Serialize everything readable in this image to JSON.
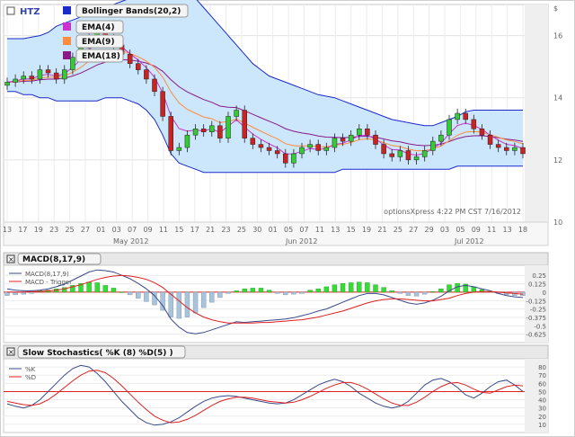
{
  "price_chart": {
    "symbol": "HTZ",
    "axis_unit": "$",
    "indicators": [
      "Bollinger Bands(20,2)",
      "EMA(4)",
      "EMA(9)",
      "EMA(18)"
    ],
    "indicator_colors": [
      "#1a2acc",
      "#cc33cc",
      "#ff8c3c",
      "#8a1a8a"
    ],
    "watermark": "optionsXpress 4:22 PM CST 7/16/2012",
    "months": [
      "May 2012",
      "Jun 2012",
      "Jul 2012"
    ],
    "date_ticks": [
      "13",
      "17",
      "19",
      "23",
      "25",
      "27",
      "01",
      "03",
      "07",
      "09",
      "11",
      "15",
      "17",
      "21",
      "23",
      "25",
      "30",
      "01",
      "05",
      "07",
      "11",
      "13",
      "15",
      "19",
      "21",
      "25",
      "27",
      "29",
      "03",
      "05",
      "09",
      "11",
      "13",
      "18"
    ]
  },
  "macd_panel": {
    "title": "MACD(8,17,9)",
    "legend": [
      "MACD(8,17,9)",
      "MACD - Trigger"
    ],
    "colors": {
      "macd": "#3a4a8a",
      "trigger": "#e02020",
      "hist_pos": "#33dd33",
      "hist_neg": "#a8c4dc"
    }
  },
  "stoch_panel": {
    "title": "Slow Stochastics( %K (8) %D(5) )",
    "legend": [
      "%K",
      "%D"
    ],
    "colors": {
      "k": "#3a4a8a",
      "d": "#e02020"
    }
  },
  "chart_data": [
    {
      "type": "candlestick",
      "ylim": [
        10,
        17
      ],
      "yticks": [
        10,
        12,
        14,
        16
      ],
      "grid": true,
      "close": [
        14.5,
        14.6,
        14.7,
        14.6,
        14.9,
        14.8,
        14.6,
        14.9,
        15.3,
        15.6,
        16.0,
        16.2,
        15.9,
        15.7,
        15.4,
        15.1,
        14.9,
        14.6,
        14.2,
        13.4,
        12.3,
        12.4,
        12.8,
        13.0,
        12.9,
        13.1,
        12.7,
        13.4,
        13.6,
        12.7,
        12.5,
        12.4,
        12.3,
        12.2,
        11.9,
        12.2,
        12.4,
        12.5,
        12.3,
        12.4,
        12.7,
        12.6,
        12.8,
        13.0,
        12.8,
        12.5,
        12.2,
        12.1,
        12.3,
        12.0,
        12.1,
        12.3,
        12.6,
        12.8,
        13.3,
        13.5,
        13.3,
        13.0,
        12.8,
        12.5,
        12.4,
        12.3,
        12.4,
        12.2
      ],
      "bb_upper": [
        15.9,
        15.9,
        15.9,
        15.95,
        16.0,
        16.1,
        16.3,
        16.4,
        16.5,
        16.6,
        16.7,
        16.8,
        16.9,
        17.0,
        17.1,
        17.2,
        17.3,
        17.4,
        17.5,
        17.55,
        17.6,
        17.55,
        17.4,
        17.2,
        16.9,
        16.6,
        16.3,
        16.0,
        15.7,
        15.4,
        15.1,
        14.9,
        14.7,
        14.6,
        14.5,
        14.4,
        14.3,
        14.2,
        14.1,
        14.05,
        14.0,
        13.9,
        13.8,
        13.7,
        13.6,
        13.5,
        13.4,
        13.3,
        13.25,
        13.2,
        13.15,
        13.1,
        13.1,
        13.2,
        13.3,
        13.4,
        13.55,
        13.6,
        13.6,
        13.6,
        13.6,
        13.6,
        13.6,
        13.6
      ],
      "bb_lower": [
        14.2,
        14.2,
        14.1,
        14.1,
        14.0,
        14.0,
        13.9,
        13.9,
        13.9,
        13.9,
        13.9,
        13.9,
        14.0,
        14.0,
        14.0,
        13.9,
        13.8,
        13.6,
        13.3,
        12.8,
        12.2,
        11.9,
        11.8,
        11.7,
        11.6,
        11.6,
        11.6,
        11.6,
        11.6,
        11.6,
        11.6,
        11.6,
        11.6,
        11.6,
        11.6,
        11.6,
        11.6,
        11.6,
        11.6,
        11.6,
        11.6,
        11.7,
        11.7,
        11.7,
        11.7,
        11.7,
        11.7,
        11.7,
        11.7,
        11.7,
        11.7,
        11.7,
        11.7,
        11.7,
        11.7,
        11.8,
        11.8,
        11.8,
        11.8,
        11.8,
        11.8,
        11.8,
        11.8,
        11.8
      ]
    },
    {
      "type": "bar+line",
      "ylim": [
        -0.75,
        0.4
      ],
      "yticks": [
        0.25,
        0.125,
        0,
        -0.125,
        -0.25,
        -0.375,
        -0.5,
        -0.625
      ],
      "macd": [
        0.05,
        0.03,
        0.02,
        0.02,
        0.03,
        0.05,
        0.08,
        0.12,
        0.18,
        0.24,
        0.3,
        0.33,
        0.32,
        0.3,
        0.25,
        0.2,
        0.13,
        0.05,
        -0.05,
        -0.2,
        -0.4,
        -0.52,
        -0.6,
        -0.62,
        -0.6,
        -0.56,
        -0.52,
        -0.48,
        -0.44,
        -0.45,
        -0.44,
        -0.43,
        -0.42,
        -0.41,
        -0.4,
        -0.38,
        -0.35,
        -0.32,
        -0.28,
        -0.25,
        -0.2,
        -0.15,
        -0.1,
        -0.05,
        -0.02,
        -0.02,
        -0.04,
        -0.08,
        -0.12,
        -0.16,
        -0.18,
        -0.16,
        -0.12,
        -0.06,
        0.02,
        0.08,
        0.1,
        0.08,
        0.05,
        0.02,
        -0.02,
        -0.05,
        -0.07,
        -0.08
      ],
      "trigger": [
        0.0,
        0.0,
        0.0,
        0.01,
        0.01,
        0.02,
        0.03,
        0.05,
        0.08,
        0.11,
        0.15,
        0.19,
        0.22,
        0.24,
        0.25,
        0.24,
        0.22,
        0.19,
        0.14,
        0.07,
        -0.03,
        -0.13,
        -0.23,
        -0.31,
        -0.37,
        -0.41,
        -0.44,
        -0.46,
        -0.46,
        -0.46,
        -0.46,
        -0.45,
        -0.45,
        -0.44,
        -0.43,
        -0.42,
        -0.41,
        -0.39,
        -0.37,
        -0.34,
        -0.31,
        -0.28,
        -0.24,
        -0.2,
        -0.16,
        -0.13,
        -0.11,
        -0.1,
        -0.1,
        -0.11,
        -0.12,
        -0.13,
        -0.13,
        -0.11,
        -0.09,
        -0.05,
        -0.02,
        0.0,
        0.01,
        0.01,
        0.0,
        -0.01,
        -0.02,
        -0.03
      ],
      "histogram": [
        -0.05,
        -0.04,
        -0.03,
        -0.02,
        0.02,
        0.03,
        0.05,
        0.07,
        0.1,
        0.13,
        0.15,
        0.14,
        0.1,
        0.06,
        0.0,
        -0.04,
        -0.09,
        -0.14,
        -0.19,
        -0.27,
        -0.37,
        -0.39,
        -0.37,
        -0.31,
        -0.23,
        -0.15,
        -0.08,
        -0.02,
        0.02,
        0.05,
        0.06,
        0.06,
        0.03,
        -0.02,
        -0.04,
        -0.03,
        -0.02,
        0.03,
        0.05,
        0.08,
        0.11,
        0.13,
        0.14,
        0.15,
        0.14,
        0.11,
        0.07,
        0.02,
        -0.02,
        -0.05,
        -0.06,
        -0.03,
        0.01,
        0.05,
        0.11,
        0.13,
        0.12,
        0.08,
        0.04,
        0.01,
        -0.02,
        -0.04,
        -0.05,
        -0.05
      ]
    },
    {
      "type": "line",
      "ylim": [
        0,
        90
      ],
      "yticks": [
        80,
        70,
        60,
        50,
        40,
        30,
        20,
        10
      ],
      "reference_line": 50,
      "k": [
        35,
        32,
        30,
        33,
        40,
        50,
        60,
        70,
        78,
        82,
        80,
        72,
        62,
        50,
        38,
        28,
        18,
        12,
        9,
        10,
        13,
        18,
        25,
        32,
        38,
        42,
        44,
        45,
        44,
        42,
        40,
        38,
        36,
        35,
        36,
        40,
        46,
        52,
        58,
        62,
        65,
        62,
        56,
        48,
        42,
        36,
        32,
        30,
        32,
        38,
        48,
        58,
        64,
        66,
        62,
        55,
        46,
        42,
        48,
        56,
        62,
        64,
        58,
        50
      ],
      "d": [
        38,
        36,
        34,
        33,
        35,
        40,
        47,
        55,
        63,
        70,
        75,
        76,
        73,
        66,
        57,
        47,
        37,
        28,
        20,
        15,
        12,
        13,
        16,
        21,
        27,
        33,
        38,
        41,
        43,
        43,
        42,
        40,
        38,
        37,
        36,
        37,
        40,
        44,
        49,
        54,
        58,
        61,
        61,
        58,
        53,
        47,
        41,
        36,
        33,
        33,
        37,
        43,
        50,
        56,
        60,
        61,
        58,
        53,
        49,
        48,
        52,
        56,
        58,
        57
      ]
    }
  ]
}
